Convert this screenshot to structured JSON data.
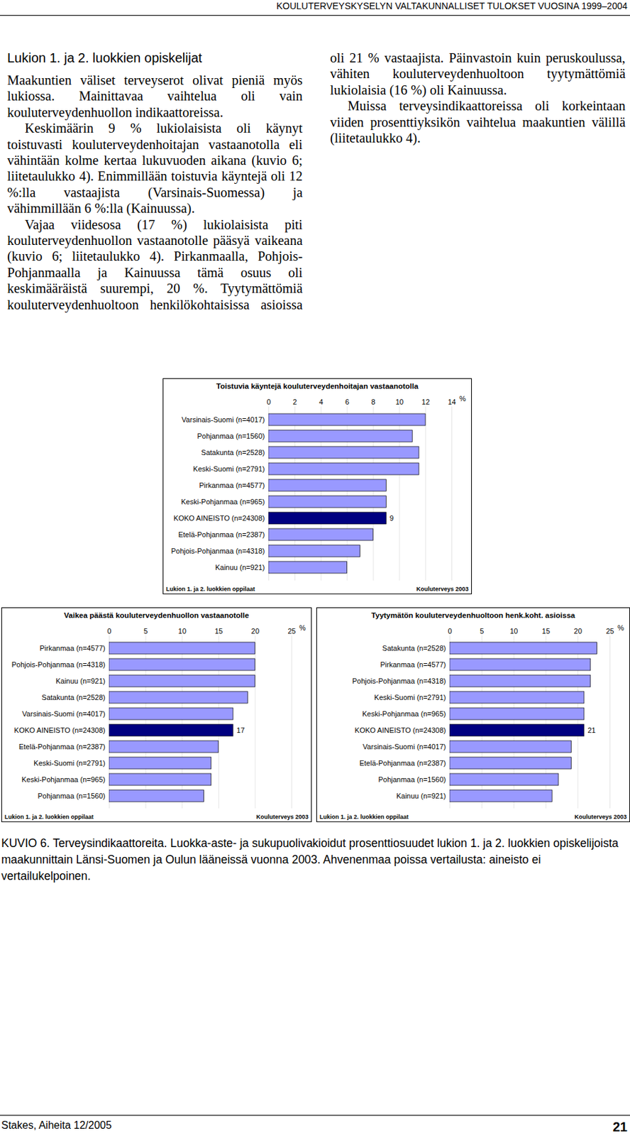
{
  "header": "KOULUTERVEYSKYSELYN VALTAKUNNALLISET TULOKSET VUOSINA 1999–2004",
  "section_title": "Lukion 1. ja 2. luokkien opiskelijat",
  "paragraphs": [
    "Maakuntien väliset terveyserot olivat pieniä myös lukiossa. Mainittavaa vaihtelua oli vain kouluterveydenhuollon indikaattoreissa.",
    "Keskimäärin 9 % lukiolaisista oli käynyt toistuvasti kouluterveydenhoitajan vastaanotolla eli vähintään kolme kertaa lukuvuoden aikana (kuvio 6; liitetaulukko 4). Enimmillään toistuvia käyntejä oli 12 %:lla vastaajista (Varsinais-Suomessa) ja vähimmillään 6 %:lla (Kainuussa).",
    "Vajaa viidesosa (17 %) lukiolaisista piti kouluterveydenhuollon vastaanotolle pääsyä vaikeana (kuvio 6; liitetaulukko 4). Pirkanmaalla, Pohjois-Pohjanmaalla ja Kainuussa tämä osuus oli keskimääräistä suurempi, 20 %. Tyytymättömiä kouluterveydenhuoltoon henkilökohtaisissa asioissa oli 21 % vastaajista. Päinvastoin kuin peruskoulussa, vähiten kouluterveydenhuoltoon tyytymättömiä lukiolaisia (16 %) oli Kainuussa.",
    "Muissa terveysindikaattoreissa oli korkeintaan viiden prosenttiyksikön vaihtelua maakuntien välillä (liitetaulukko 4)."
  ],
  "chart_data": [
    {
      "type": "bar",
      "orientation": "horizontal",
      "title": "Toistuvia käyntejä kouluterveydenhoitajan vastaanotolla",
      "xlabel": "%",
      "categories": [
        "Varsinais-Suomi (n=4017)",
        "Pohjanmaa (n=1560)",
        "Satakunta (n=2528)",
        "Keski-Suomi (n=2791)",
        "Pirkanmaa (n=4577)",
        "Keski-Pohjanmaa (n=965)",
        "KOKO AINEISTO (n=24308)",
        "Etelä-Pohjanmaa (n=2387)",
        "Pohjois-Pohjanmaa (n=4318)",
        "Kainuu (n=921)"
      ],
      "values": [
        12,
        11,
        11.5,
        11.5,
        9,
        9,
        9,
        8,
        7,
        6
      ],
      "value_labels": [
        null,
        null,
        null,
        null,
        null,
        null,
        "9",
        null,
        null,
        null
      ],
      "colors": [
        "#9999ff",
        "#9999ff",
        "#9999ff",
        "#9999ff",
        "#9999ff",
        "#9999ff",
        "#000080",
        "#9999ff",
        "#9999ff",
        "#9999ff"
      ],
      "xlim": [
        0,
        14
      ],
      "xticks": [
        0,
        2,
        4,
        6,
        8,
        10,
        12,
        14
      ],
      "grid": true,
      "note": "Lukion 1. ja 2. luokkien oppilaat",
      "source": "Kouluterveys 2003"
    },
    {
      "type": "bar",
      "orientation": "horizontal",
      "title": "Vaikea päästä kouluterveydenhuollon vastaanotolle",
      "xlabel": "%",
      "categories": [
        "Pirkanmaa (n=4577)",
        "Pohjois-Pohjanmaa (n=4318)",
        "Kainuu (n=921)",
        "Satakunta (n=2528)",
        "Varsinais-Suomi (n=4017)",
        "KOKO AINEISTO (n=24308)",
        "Etelä-Pohjanmaa (n=2387)",
        "Keski-Suomi (n=2791)",
        "Keski-Pohjanmaa (n=965)",
        "Pohjanmaa (n=1560)"
      ],
      "values": [
        20,
        20,
        20,
        19,
        17,
        17,
        15,
        14,
        14,
        13
      ],
      "value_labels": [
        null,
        null,
        null,
        null,
        null,
        "17",
        null,
        null,
        null,
        null
      ],
      "colors": [
        "#9999ff",
        "#9999ff",
        "#9999ff",
        "#9999ff",
        "#9999ff",
        "#000080",
        "#9999ff",
        "#9999ff",
        "#9999ff",
        "#9999ff"
      ],
      "xlim": [
        0,
        25
      ],
      "xticks": [
        0,
        5,
        10,
        15,
        20,
        25
      ],
      "grid": true,
      "note": "Lukion 1. ja 2. luokkien oppilaat",
      "source": "Kouluterveys 2003"
    },
    {
      "type": "bar",
      "orientation": "horizontal",
      "title": "Tyytymätön kouluterveydenhuoltoon henk.koht. asioissa",
      "xlabel": "%",
      "categories": [
        "Satakunta (n=2528)",
        "Pirkanmaa (n=4577)",
        "Pohjois-Pohjanmaa (n=4318)",
        "Keski-Suomi (n=2791)",
        "Keski-Pohjanmaa (n=965)",
        "KOKO AINEISTO (n=24308)",
        "Varsinais-Suomi (n=4017)",
        "Etelä-Pohjanmaa (n=2387)",
        "Pohjanmaa (n=1560)",
        "Kainuu (n=921)"
      ],
      "values": [
        23,
        22,
        22,
        21,
        21,
        21,
        19,
        19,
        17,
        16
      ],
      "value_labels": [
        null,
        null,
        null,
        null,
        null,
        "21",
        null,
        null,
        null,
        null
      ],
      "colors": [
        "#9999ff",
        "#9999ff",
        "#9999ff",
        "#9999ff",
        "#9999ff",
        "#000080",
        "#9999ff",
        "#9999ff",
        "#9999ff",
        "#9999ff"
      ],
      "xlim": [
        0,
        25
      ],
      "xticks": [
        0,
        5,
        10,
        15,
        20,
        25
      ],
      "grid": true,
      "note": "Lukion 1. ja 2. luokkien oppilaat",
      "source": "Kouluterveys 2003"
    }
  ],
  "caption": "KUVIO 6. Terveysindikaattoreita. Luokka-aste- ja sukupuolivakioidut prosenttiosuudet lukion 1. ja 2. luokkien opiskelijoista maakunnittain Länsi-Suomen ja Oulun lääneissä vuonna 2003. Ahvenenmaa poissa vertailusta: aineisto ei vertailukelpoinen.",
  "footer": {
    "left": "Stakes, Aiheita 12/2005",
    "right": "21"
  }
}
